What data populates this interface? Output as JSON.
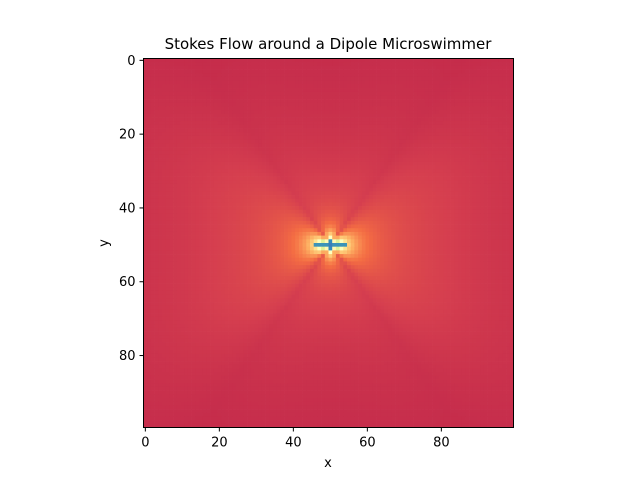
{
  "chart_data": {
    "type": "heatmap",
    "title": "Stokes Flow around a Dipole Microswimmer",
    "xlabel": "x",
    "ylabel": "y",
    "grid_size": 100,
    "xlim": [
      -0.5,
      99.5
    ],
    "ylim": [
      99.5,
      -0.5
    ],
    "xticks": [
      0,
      20,
      40,
      60,
      80
    ],
    "yticks": [
      0,
      20,
      40,
      60,
      80
    ],
    "swimmer_center": [
      50,
      50
    ],
    "colormap": "Spectral",
    "grid": false
  }
}
